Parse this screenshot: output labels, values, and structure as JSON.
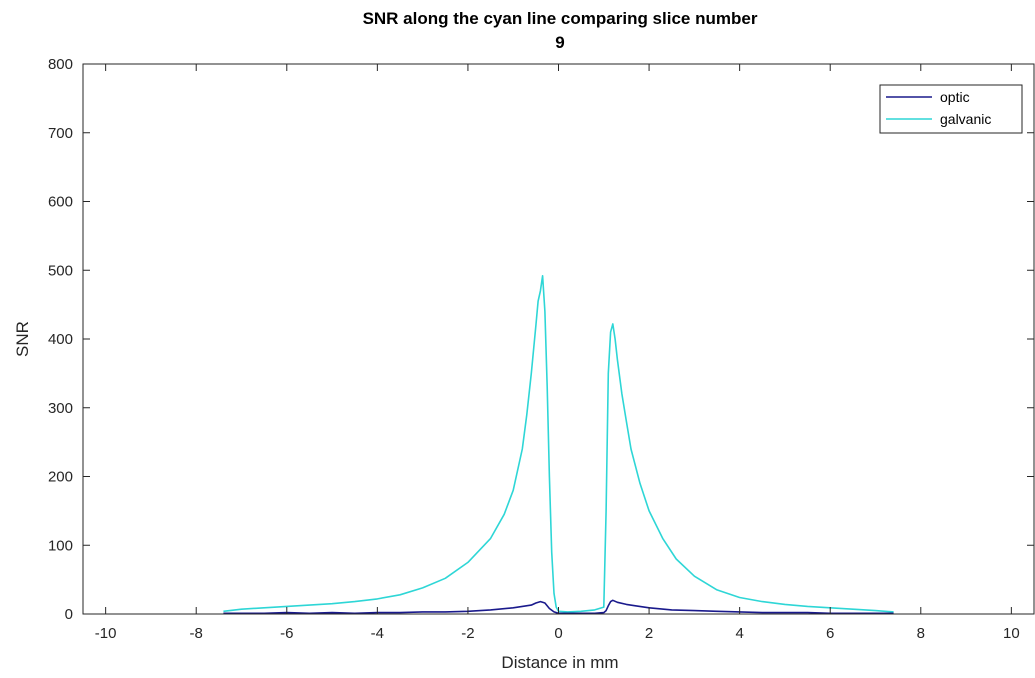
{
  "chart_data": {
    "type": "line",
    "title": [
      "SNR along the cyan line comparing slice number",
      "9"
    ],
    "xlabel": "Distance in mm",
    "ylabel": "SNR",
    "xlim": [
      -10.5,
      10.5
    ],
    "ylim": [
      0,
      800
    ],
    "xticks": [
      -10,
      -8,
      -6,
      -4,
      -2,
      0,
      2,
      4,
      6,
      8,
      10
    ],
    "yticks": [
      0,
      100,
      200,
      300,
      400,
      500,
      600,
      700,
      800
    ],
    "legend_position": "top-right",
    "series": [
      {
        "name": "optic",
        "color": "#1a1a8c",
        "x": [
          -7.4,
          -7.0,
          -6.5,
          -6.0,
          -5.5,
          -5.0,
          -4.5,
          -4.0,
          -3.5,
          -3.0,
          -2.5,
          -2.0,
          -1.5,
          -1.0,
          -0.8,
          -0.6,
          -0.5,
          -0.4,
          -0.35,
          -0.3,
          -0.2,
          -0.1,
          0.0,
          0.2,
          0.5,
          0.8,
          1.0,
          1.05,
          1.1,
          1.15,
          1.2,
          1.3,
          1.5,
          1.7,
          2.0,
          2.5,
          3.0,
          3.5,
          4.0,
          4.5,
          5.0,
          5.5,
          6.0,
          6.5,
          7.0,
          7.4
        ],
        "values": [
          1,
          1,
          1,
          2,
          1,
          2,
          1,
          2,
          2,
          3,
          3,
          4,
          6,
          9,
          11,
          13,
          16,
          18,
          17,
          16,
          8,
          3,
          1,
          1,
          1,
          1,
          2,
          5,
          12,
          18,
          20,
          17,
          14,
          12,
          9,
          6,
          5,
          4,
          3,
          2,
          2,
          2,
          1,
          1,
          1,
          1
        ]
      },
      {
        "name": "galvanic",
        "color": "#2ed6d6",
        "x": [
          -7.4,
          -7.0,
          -6.5,
          -6.0,
          -5.5,
          -5.0,
          -4.5,
          -4.0,
          -3.5,
          -3.0,
          -2.5,
          -2.0,
          -1.5,
          -1.2,
          -1.0,
          -0.8,
          -0.7,
          -0.6,
          -0.5,
          -0.45,
          -0.4,
          -0.35,
          -0.3,
          -0.25,
          -0.2,
          -0.15,
          -0.1,
          -0.05,
          0.0,
          0.2,
          0.5,
          0.8,
          1.0,
          1.05,
          1.1,
          1.15,
          1.2,
          1.25,
          1.3,
          1.4,
          1.5,
          1.6,
          1.8,
          2.0,
          2.3,
          2.6,
          3.0,
          3.5,
          4.0,
          4.5,
          5.0,
          5.5,
          6.0,
          6.5,
          7.0,
          7.4
        ],
        "values": [
          4,
          7,
          9,
          11,
          13,
          15,
          18,
          22,
          28,
          38,
          52,
          75,
          110,
          145,
          180,
          240,
          290,
          350,
          420,
          455,
          470,
          492,
          440,
          330,
          200,
          90,
          30,
          10,
          4,
          3,
          4,
          6,
          10,
          150,
          350,
          410,
          422,
          400,
          370,
          320,
          280,
          240,
          190,
          150,
          110,
          80,
          55,
          35,
          24,
          18,
          14,
          11,
          9,
          7,
          5,
          3
        ]
      }
    ]
  }
}
